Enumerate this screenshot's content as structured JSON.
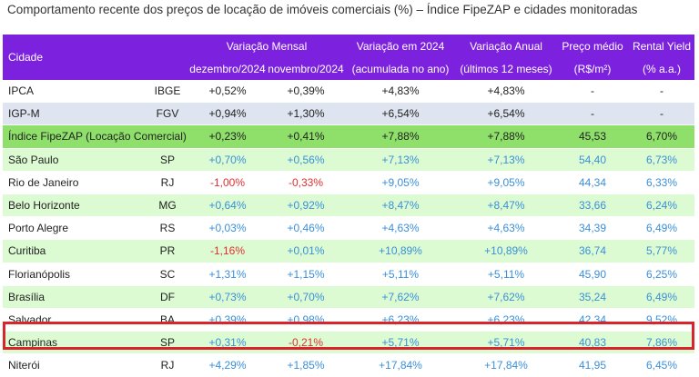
{
  "title": "Comportamento recente dos preços de locação de imóveis comerciais (%) – Índice FipeZAP e cidades monitoradas",
  "header": {
    "cidade": "Cidade",
    "variacao_mensal": "Variação Mensal",
    "dez": "dezembro/2024",
    "nov": "novembro/2024",
    "variacao_2024": "Variação em 2024",
    "variacao_2024_sub": "(acumulada no ano)",
    "variacao_anual": "Variação Anual",
    "variacao_anual_sub": "(últimos 12 meses)",
    "preco_medio": "Preço médio",
    "preco_medio_sub": "(R$/m²)",
    "rental_yield": "Rental Yield",
    "rental_yield_sub": "(% a.a.)"
  },
  "rows": [
    {
      "city": "IPCA",
      "src": "IBGE",
      "dez": "+0,52%",
      "nov": "+0,39%",
      "ano": "+4,83%",
      "anual": "+4,83%",
      "preco": "-",
      "yield": "-"
    },
    {
      "city": "IGP-M",
      "src": "FGV",
      "dez": "+0,94%",
      "nov": "+1,30%",
      "ano": "+6,54%",
      "anual": "+6,54%",
      "preco": "-",
      "yield": "-"
    },
    {
      "city": "Índice FipeZAP (Locação Comercial)",
      "src": "",
      "dez": "+0,23%",
      "nov": "+0,41%",
      "ano": "+7,88%",
      "anual": "+7,88%",
      "preco": "45,53",
      "yield": "6,70%"
    },
    {
      "city": "São Paulo",
      "src": "SP",
      "dez": "+0,70%",
      "nov": "+0,56%",
      "ano": "+7,13%",
      "anual": "+7,13%",
      "preco": "54,40",
      "yield": "6,73%"
    },
    {
      "city": "Rio de Janeiro",
      "src": "RJ",
      "dez": "-1,00%",
      "nov": "-0,33%",
      "ano": "+9,05%",
      "anual": "+9,05%",
      "preco": "44,34",
      "yield": "6,33%"
    },
    {
      "city": "Belo Horizonte",
      "src": "MG",
      "dez": "+0,64%",
      "nov": "+0,92%",
      "ano": "+8,47%",
      "anual": "+8,47%",
      "preco": "33,66",
      "yield": "6,24%"
    },
    {
      "city": "Porto Alegre",
      "src": "RS",
      "dez": "+0,03%",
      "nov": "+0,46%",
      "ano": "+4,63%",
      "anual": "+4,63%",
      "preco": "34,39",
      "yield": "6,49%"
    },
    {
      "city": "Curitiba",
      "src": "PR",
      "dez": "-1,16%",
      "nov": "+0,01%",
      "ano": "+10,89%",
      "anual": "+10,89%",
      "preco": "36,74",
      "yield": "5,77%"
    },
    {
      "city": "Florianópolis",
      "src": "SC",
      "dez": "+1,31%",
      "nov": "+1,15%",
      "ano": "+5,11%",
      "anual": "+5,11%",
      "preco": "45,90",
      "yield": "6,25%"
    },
    {
      "city": "Brasília",
      "src": "DF",
      "dez": "+0,73%",
      "nov": "+0,70%",
      "ano": "+7,62%",
      "anual": "+7,62%",
      "preco": "35,24",
      "yield": "6,49%"
    },
    {
      "city": "Salvador",
      "src": "BA",
      "dez": "+0,39%",
      "nov": "+0,98%",
      "ano": "+6,23%",
      "anual": "+6,23%",
      "preco": "42,34",
      "yield": "9,52%"
    },
    {
      "city": "Campinas",
      "src": "SP",
      "dez": "+0,31%",
      "nov": "-0,21%",
      "ano": "+5,71%",
      "anual": "+5,71%",
      "preco": "40,83",
      "yield": "7,86%"
    },
    {
      "city": "Niterói",
      "src": "RJ",
      "dez": "+4,29%",
      "nov": "+1,85%",
      "ano": "+17,84%",
      "anual": "+17,84%",
      "preco": "41,95",
      "yield": "6,45%"
    }
  ],
  "colors": {
    "header_bg": "#7c22de",
    "fipe_row": "#8ee06a",
    "green_row": "#dcfbd2",
    "gray_row": "#dfe5f0",
    "positive_text": "#3b8fd8",
    "negative_text": "#e03030",
    "highlight_border": "#d6252b"
  }
}
